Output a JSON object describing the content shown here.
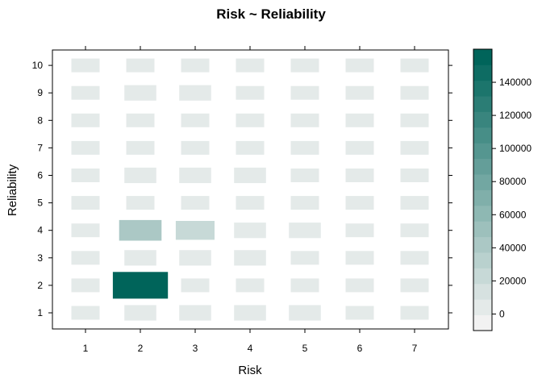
{
  "chart_data": {
    "type": "heatmap",
    "title": "Risk ~ Reliability",
    "xlabel": "Risk",
    "ylabel": "Reliability",
    "x_categories": [
      "1",
      "2",
      "3",
      "4",
      "5",
      "6",
      "7"
    ],
    "y_categories": [
      "1",
      "2",
      "3",
      "4",
      "5",
      "6",
      "7",
      "8",
      "9",
      "10"
    ],
    "values": [
      [
        0,
        3000,
        3000,
        3000,
        3000,
        0,
        0
      ],
      [
        0,
        160000,
        0,
        0,
        0,
        0,
        0
      ],
      [
        0,
        3000,
        3000,
        3000,
        0,
        0,
        0
      ],
      [
        0,
        45000,
        25000,
        3000,
        3000,
        0,
        0
      ],
      [
        0,
        0,
        0,
        0,
        0,
        0,
        0
      ],
      [
        0,
        3000,
        3000,
        3000,
        0,
        0,
        0
      ],
      [
        0,
        0,
        0,
        0,
        0,
        0,
        0
      ],
      [
        0,
        0,
        0,
        0,
        0,
        0,
        0
      ],
      [
        0,
        3000,
        3000,
        0,
        0,
        0,
        0
      ],
      [
        0,
        0,
        0,
        0,
        0,
        0,
        0
      ]
    ],
    "colorbar": {
      "min": -10000,
      "max": 160000,
      "steps": 18,
      "ticks": [
        0,
        20000,
        40000,
        60000,
        80000,
        100000,
        120000,
        140000
      ],
      "tick_labels": [
        "0",
        "20000",
        "40000",
        "60000",
        "80000",
        "100000",
        "120000",
        "140000"
      ],
      "color_low": "#f2f2f2",
      "color_high": "#00645a"
    }
  }
}
